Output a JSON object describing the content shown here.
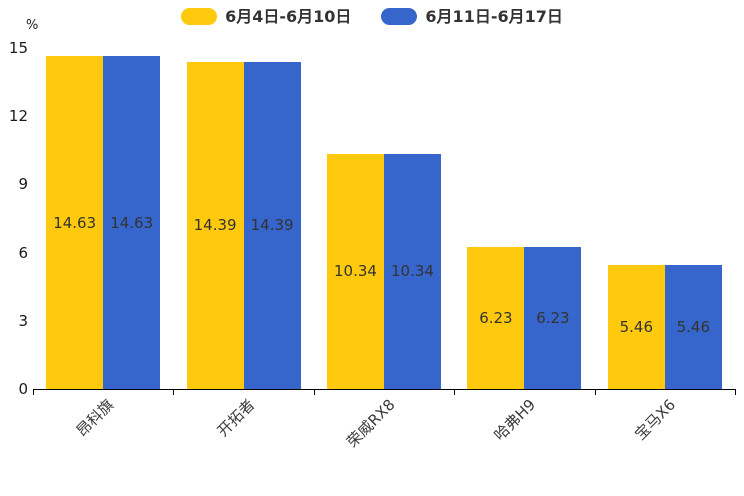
{
  "chart_data": {
    "type": "bar",
    "title": "",
    "categories": [
      "昂科旗",
      "开拓者",
      "荣威RX8",
      "哈弗H9",
      "宝马X6"
    ],
    "series": [
      {
        "name": "6月4日-6月10日",
        "color": "#FFC90E",
        "values": [
          14.63,
          14.39,
          10.34,
          6.23,
          5.46
        ]
      },
      {
        "name": "6月11日-6月17日",
        "color": "#3666CC",
        "values": [
          14.63,
          14.39,
          10.34,
          6.23,
          5.46
        ]
      }
    ],
    "xlabel": "",
    "ylabel": "%",
    "ylim": [
      0,
      15
    ],
    "yticks": [
      0,
      3,
      6,
      9,
      12,
      15
    ],
    "grid": false,
    "legend_position": "top",
    "value_labels_shown": true,
    "value_label_color": "#333333",
    "axis_color": "#000000"
  }
}
